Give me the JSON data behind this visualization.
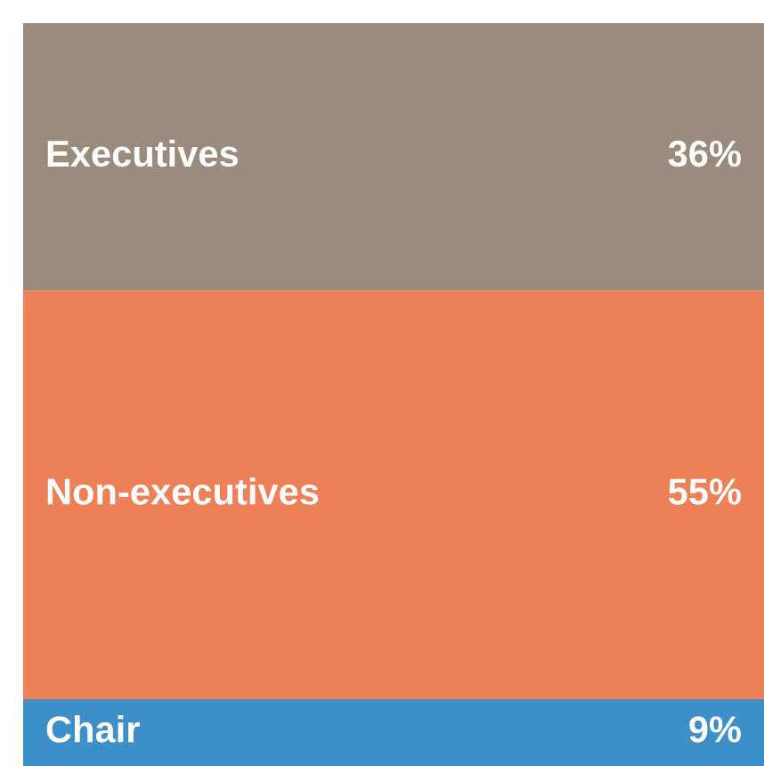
{
  "chart_data": {
    "type": "bar",
    "stacked": true,
    "categories": [
      null
    ],
    "ylim": [
      0,
      100
    ],
    "series": [
      {
        "name": "Chair",
        "color": "#3d8fca",
        "values": [
          9
        ],
        "value_labels": [
          "9%"
        ]
      },
      {
        "name": "Non-executives",
        "color": "#ee8058",
        "values": [
          55
        ],
        "value_labels": [
          "55%"
        ]
      },
      {
        "name": "Executives",
        "color": "#9b8b7d",
        "values": [
          36
        ],
        "value_labels": [
          "36%"
        ]
      }
    ]
  }
}
